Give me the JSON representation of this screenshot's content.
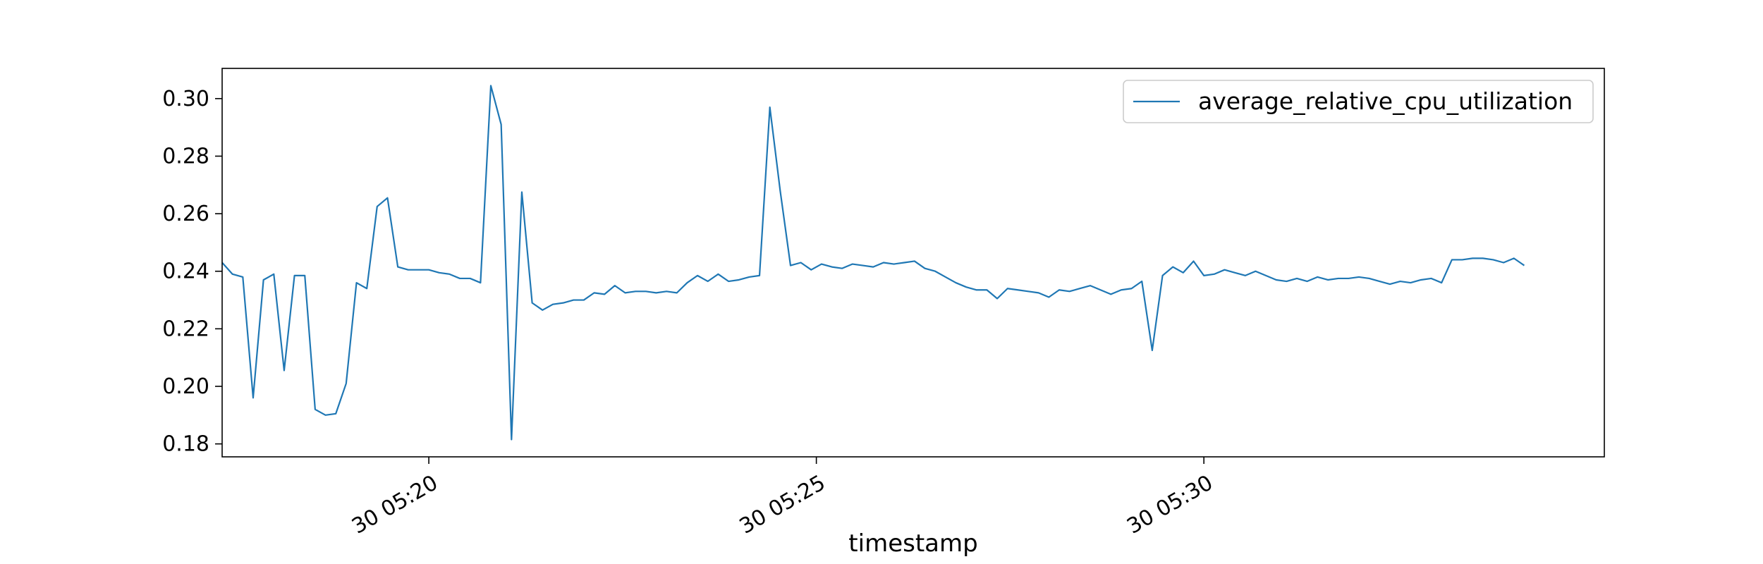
{
  "colors": {
    "series": "#1f77b4",
    "axis": "#000000",
    "legend_border": "#cccccc",
    "background": "#ffffff"
  },
  "chart_data": {
    "type": "line",
    "title": "",
    "xlabel": "timestamp",
    "ylabel": "",
    "x_axis_type": "datetime",
    "xlim": [
      "05:17:20",
      "05:35:10"
    ],
    "ylim": [
      0.1755,
      0.3105
    ],
    "xticks": [
      {
        "value": "05:20:00",
        "label": "30 05:20"
      },
      {
        "value": "05:25:00",
        "label": "30 05:25"
      },
      {
        "value": "05:30:00",
        "label": "30 05:30"
      }
    ],
    "yticks": [
      {
        "value": 0.18,
        "label": "0.18"
      },
      {
        "value": 0.2,
        "label": "0.20"
      },
      {
        "value": 0.22,
        "label": "0.22"
      },
      {
        "value": 0.24,
        "label": "0.24"
      },
      {
        "value": 0.26,
        "label": "0.26"
      },
      {
        "value": 0.28,
        "label": "0.28"
      },
      {
        "value": 0.3,
        "label": "0.30"
      }
    ],
    "grid": false,
    "legend_position": "top-right",
    "sampling_note_x": "samples every 8 seconds from 05:17:20",
    "series": [
      {
        "name": "average_relative_cpu_utilization",
        "color": "#1f77b4",
        "x_start": "05:17:20",
        "x_step_seconds": 8,
        "values": [
          0.243,
          0.239,
          0.238,
          0.196,
          0.237,
          0.239,
          0.2055,
          0.2385,
          0.2385,
          0.192,
          0.19,
          0.1905,
          0.201,
          0.236,
          0.234,
          0.2625,
          0.2655,
          0.2415,
          0.2405,
          0.2405,
          0.2405,
          0.2395,
          0.239,
          0.2375,
          0.2375,
          0.236,
          0.3045,
          0.291,
          0.1815,
          0.2675,
          0.229,
          0.2265,
          0.2285,
          0.229,
          0.23,
          0.23,
          0.2325,
          0.232,
          0.235,
          0.2325,
          0.233,
          0.233,
          0.2325,
          0.233,
          0.2325,
          0.236,
          0.2385,
          0.2365,
          0.239,
          0.2365,
          0.237,
          0.238,
          0.2385,
          0.297,
          0.268,
          0.242,
          0.243,
          0.2405,
          0.2425,
          0.2415,
          0.241,
          0.2425,
          0.242,
          0.2415,
          0.243,
          0.2425,
          0.243,
          0.2435,
          0.241,
          0.24,
          0.238,
          0.236,
          0.2345,
          0.2335,
          0.2335,
          0.2305,
          0.234,
          0.2335,
          0.233,
          0.2325,
          0.231,
          0.2335,
          0.233,
          0.234,
          0.235,
          0.2335,
          0.232,
          0.2335,
          0.234,
          0.2365,
          0.2125,
          0.2385,
          0.2415,
          0.2395,
          0.2435,
          0.2385,
          0.239,
          0.2405,
          0.2395,
          0.2385,
          0.24,
          0.2385,
          0.237,
          0.2365,
          0.2375,
          0.2365,
          0.238,
          0.237,
          0.2375,
          0.2375,
          0.238,
          0.2375,
          0.2365,
          0.2355,
          0.2365,
          0.236,
          0.237,
          0.2375,
          0.236,
          0.244,
          0.244,
          0.2445,
          0.2445,
          0.244,
          0.243,
          0.2445,
          0.242
        ]
      }
    ]
  }
}
